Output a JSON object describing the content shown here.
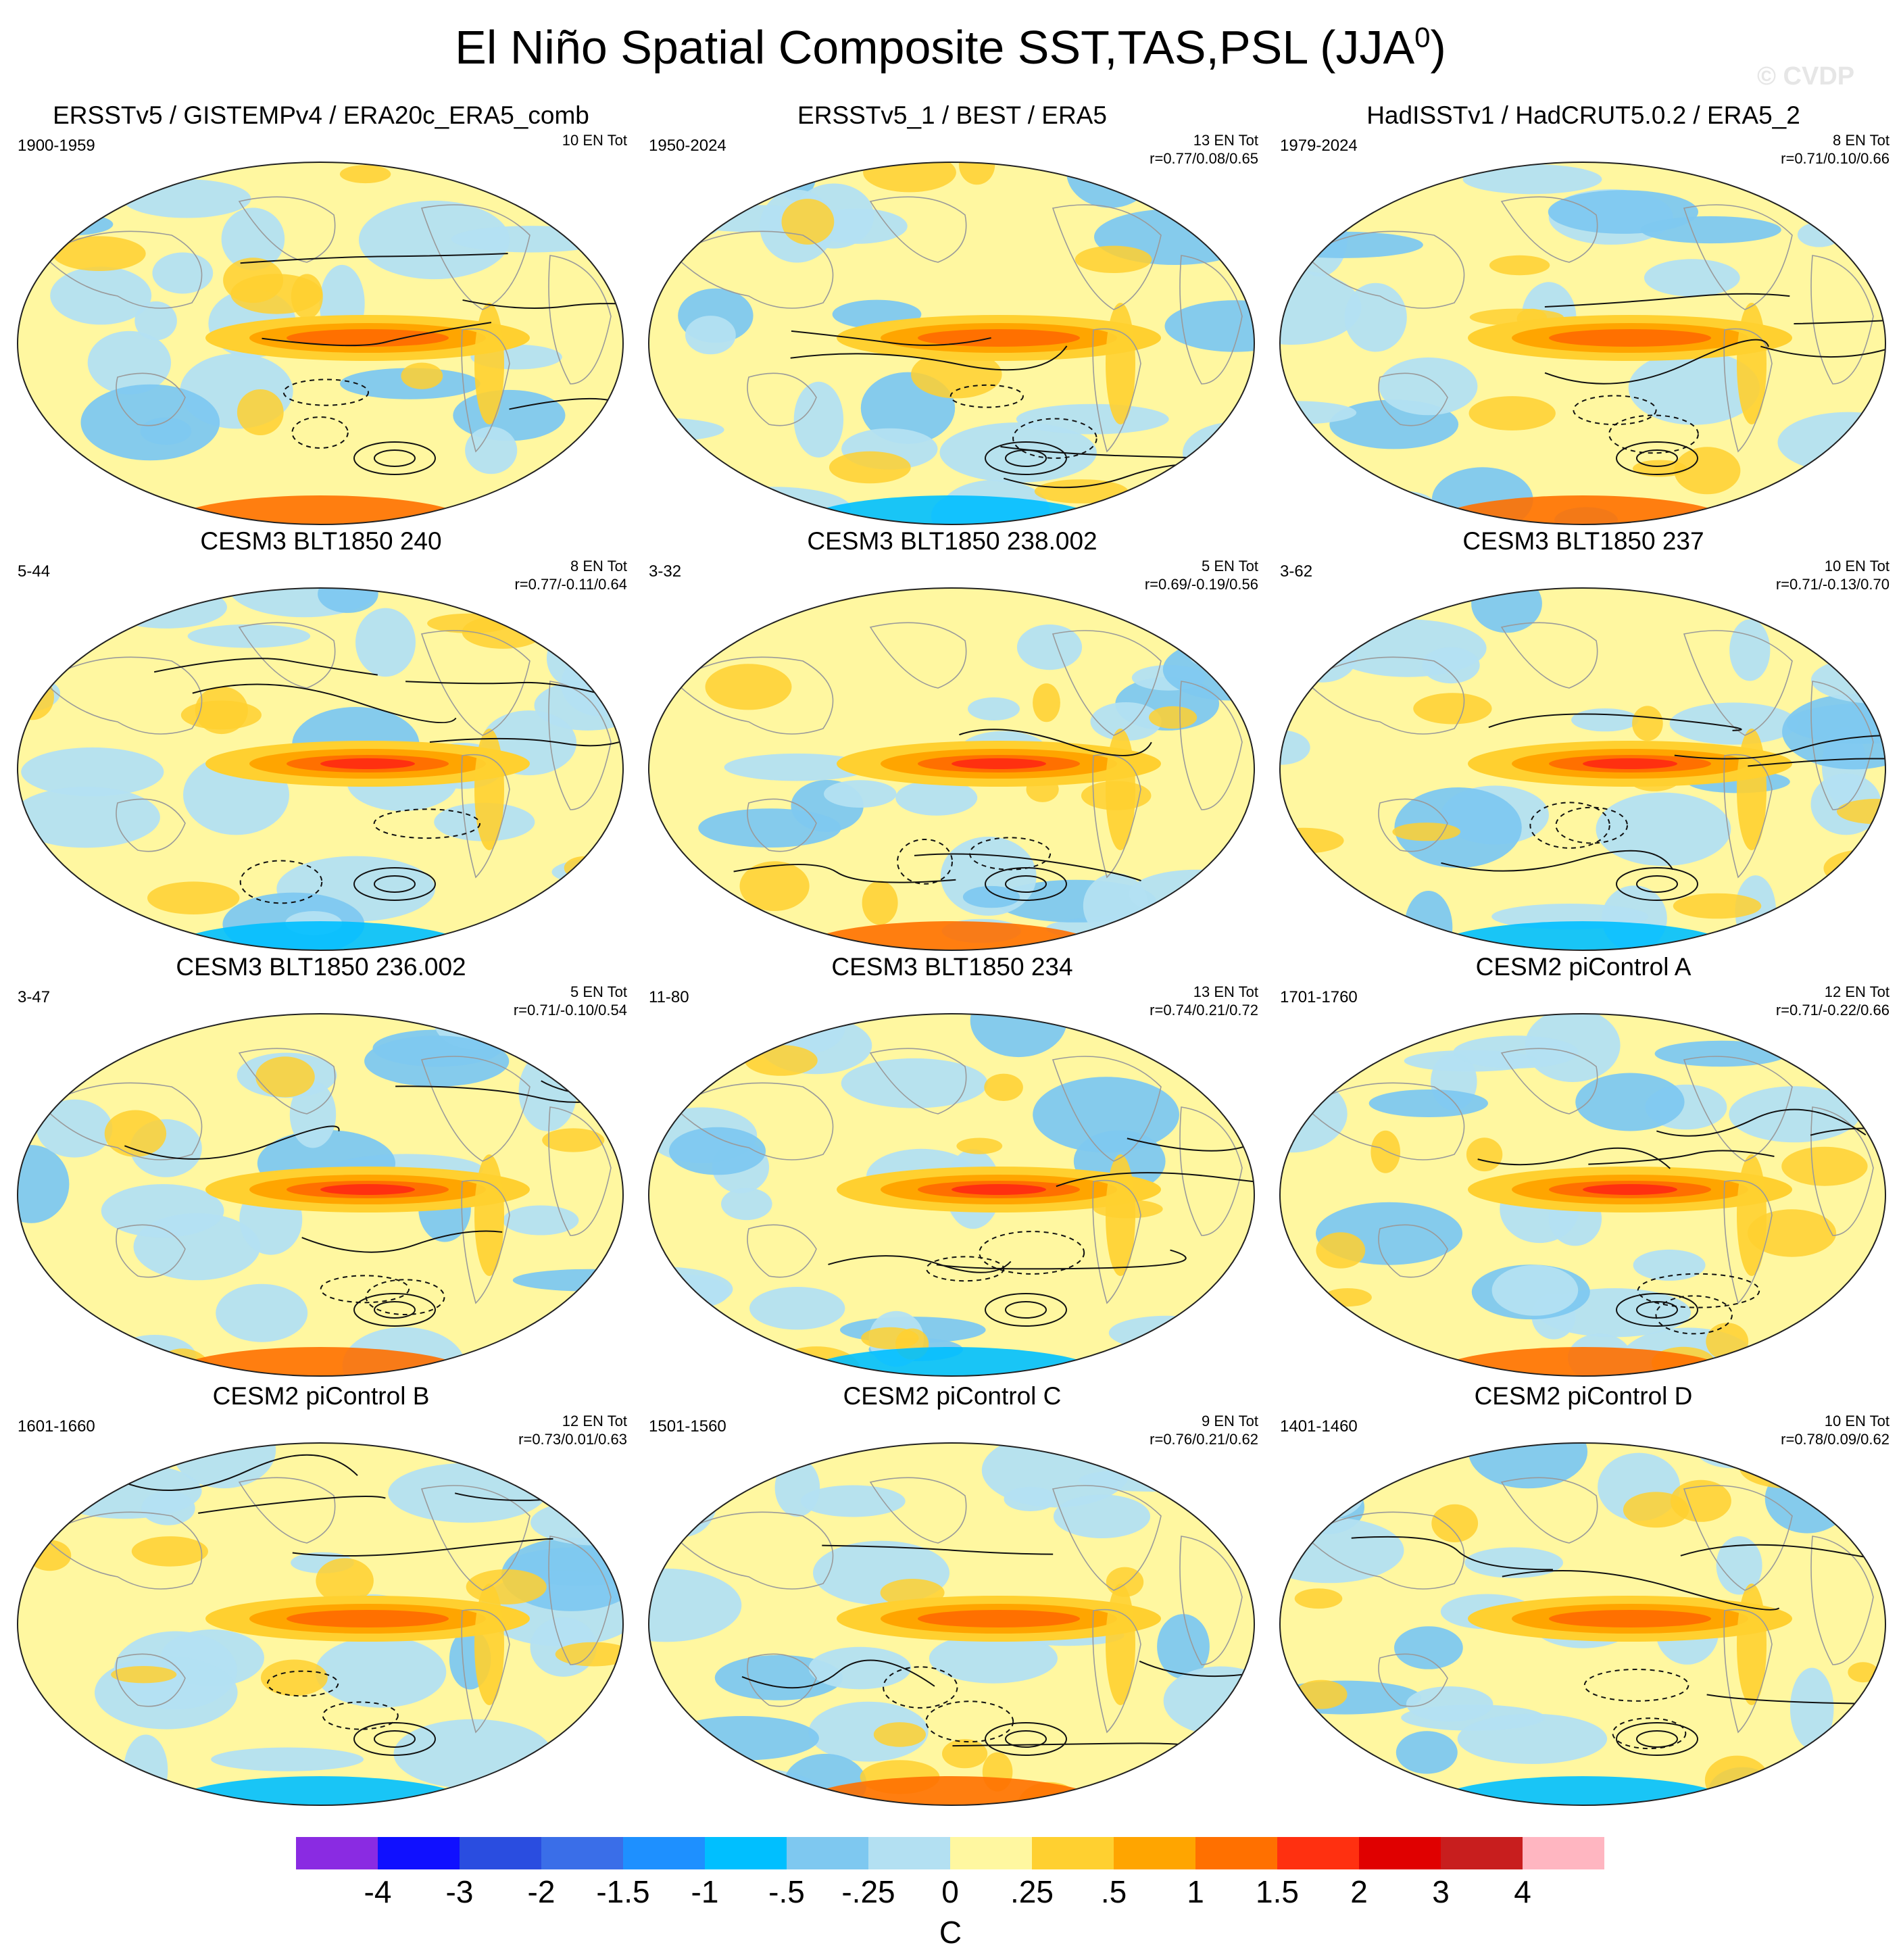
{
  "title": "El Niño Spatial Composite SST,TAS,PSL (JJA",
  "title_sup": "0",
  "title_close": ")",
  "watermark": "© CVDP",
  "chart_data": {
    "type": "map-composite-grid",
    "panels": [
      {
        "title": "ERSSTv5 / GISTEMPv4 / ERA20c_ERA5_comb",
        "period": "1900-1959",
        "events": "10 EN Tot",
        "corr": ""
      },
      {
        "title": "ERSSTv5_1 / BEST / ERA5",
        "period": "1950-2024",
        "events": "13 EN Tot",
        "corr": "r=0.77/0.08/0.65"
      },
      {
        "title": "HadISSTv1 / HadCRUT5.0.2 / ERA5_2",
        "period": "1979-2024",
        "events": "8 EN Tot",
        "corr": "r=0.71/0.10/0.66"
      },
      {
        "title": "CESM3 BLT1850 240",
        "period": "5-44",
        "events": "8 EN Tot",
        "corr": "r=0.77/-0.11/0.64"
      },
      {
        "title": "CESM3 BLT1850 238.002",
        "period": "3-32",
        "events": "5 EN Tot",
        "corr": "r=0.69/-0.19/0.56"
      },
      {
        "title": "CESM3 BLT1850 237",
        "period": "3-62",
        "events": "10 EN Tot",
        "corr": "r=0.71/-0.13/0.70"
      },
      {
        "title": "CESM3 BLT1850 236.002",
        "period": "3-47",
        "events": "5 EN Tot",
        "corr": "r=0.71/-0.10/0.54"
      },
      {
        "title": "CESM3 BLT1850 234",
        "period": "11-80",
        "events": "13 EN Tot",
        "corr": "r=0.74/0.21/0.72"
      },
      {
        "title": "CESM2 piControl A",
        "period": "1701-1760",
        "events": "12 EN Tot",
        "corr": "r=0.71/-0.22/0.66"
      },
      {
        "title": "CESM2 piControl B",
        "period": "1601-1660",
        "events": "12 EN Tot",
        "corr": "r=0.73/0.01/0.63"
      },
      {
        "title": "CESM2 piControl C",
        "period": "1501-1560",
        "events": "9 EN Tot",
        "corr": "r=0.76/0.21/0.62"
      },
      {
        "title": "CESM2 piControl D",
        "period": "1401-1460",
        "events": "10 EN Tot",
        "corr": "r=0.78/0.09/0.62"
      }
    ],
    "colorbar": {
      "unit": "C",
      "tick_labels": [
        "-4",
        "-3",
        "-2",
        "-1.5",
        "-1",
        "-.5",
        "-.25",
        "0",
        ".25",
        ".5",
        "1",
        "1.5",
        "2",
        "3",
        "4"
      ],
      "colors": [
        "#8a2be2",
        "#1010ff",
        "#2a4de0",
        "#3a6ee8",
        "#1e90ff",
        "#00bfff",
        "#7ec8f0",
        "#b3e0f2",
        "#fff7a0",
        "#ffd030",
        "#ffa500",
        "#ff7000",
        "#ff3010",
        "#e00000",
        "#c81e1e",
        "#ffb6c1"
      ]
    }
  }
}
